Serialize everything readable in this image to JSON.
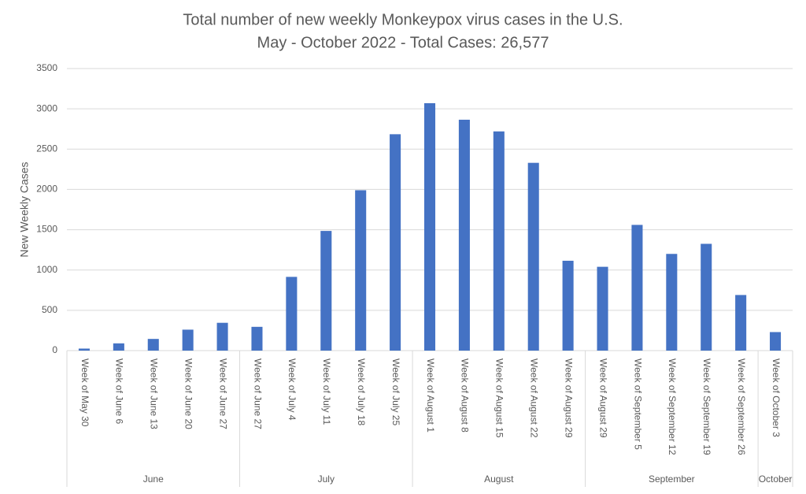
{
  "chart_data": {
    "type": "bar",
    "title": "Total number of new weekly Monkeypox virus cases in the U.S.",
    "subtitle": "May - October 2022 - Total Cases: 26,577",
    "y_label": "New Weekly Cases",
    "category_groups": [
      {
        "name": "June",
        "categories": [
          "Week of May 30",
          "Week of June 6",
          "Week of June 13",
          "Week of June 20",
          "Week of June 27"
        ]
      },
      {
        "name": "July",
        "categories": [
          "Week of June 27",
          "Week of July 4",
          "Week of July 11",
          "Week of July 18",
          "Week of July 25"
        ]
      },
      {
        "name": "August",
        "categories": [
          "Week of August 1",
          "Week of August 8",
          "Week of August 15",
          "Week of August 22",
          "Week of August 29"
        ]
      },
      {
        "name": "September",
        "categories": [
          "Week of August 29",
          "Week of September 5",
          "Week of September 12",
          "Week of September 19",
          "Week of September 26"
        ]
      },
      {
        "name": "October",
        "categories": [
          "Week of October 3"
        ]
      }
    ],
    "values": [
      25,
      90,
      145,
      260,
      345,
      295,
      915,
      1485,
      1990,
      2685,
      3070,
      2865,
      2720,
      2330,
      1115,
      1040,
      1560,
      1200,
      1325,
      690,
      230
    ],
    "color": "#4472c4",
    "ylim": [
      0,
      3500
    ],
    "yticks": [
      0,
      500,
      1000,
      1500,
      2000,
      2500,
      3000,
      3500
    ],
    "grid": true
  }
}
